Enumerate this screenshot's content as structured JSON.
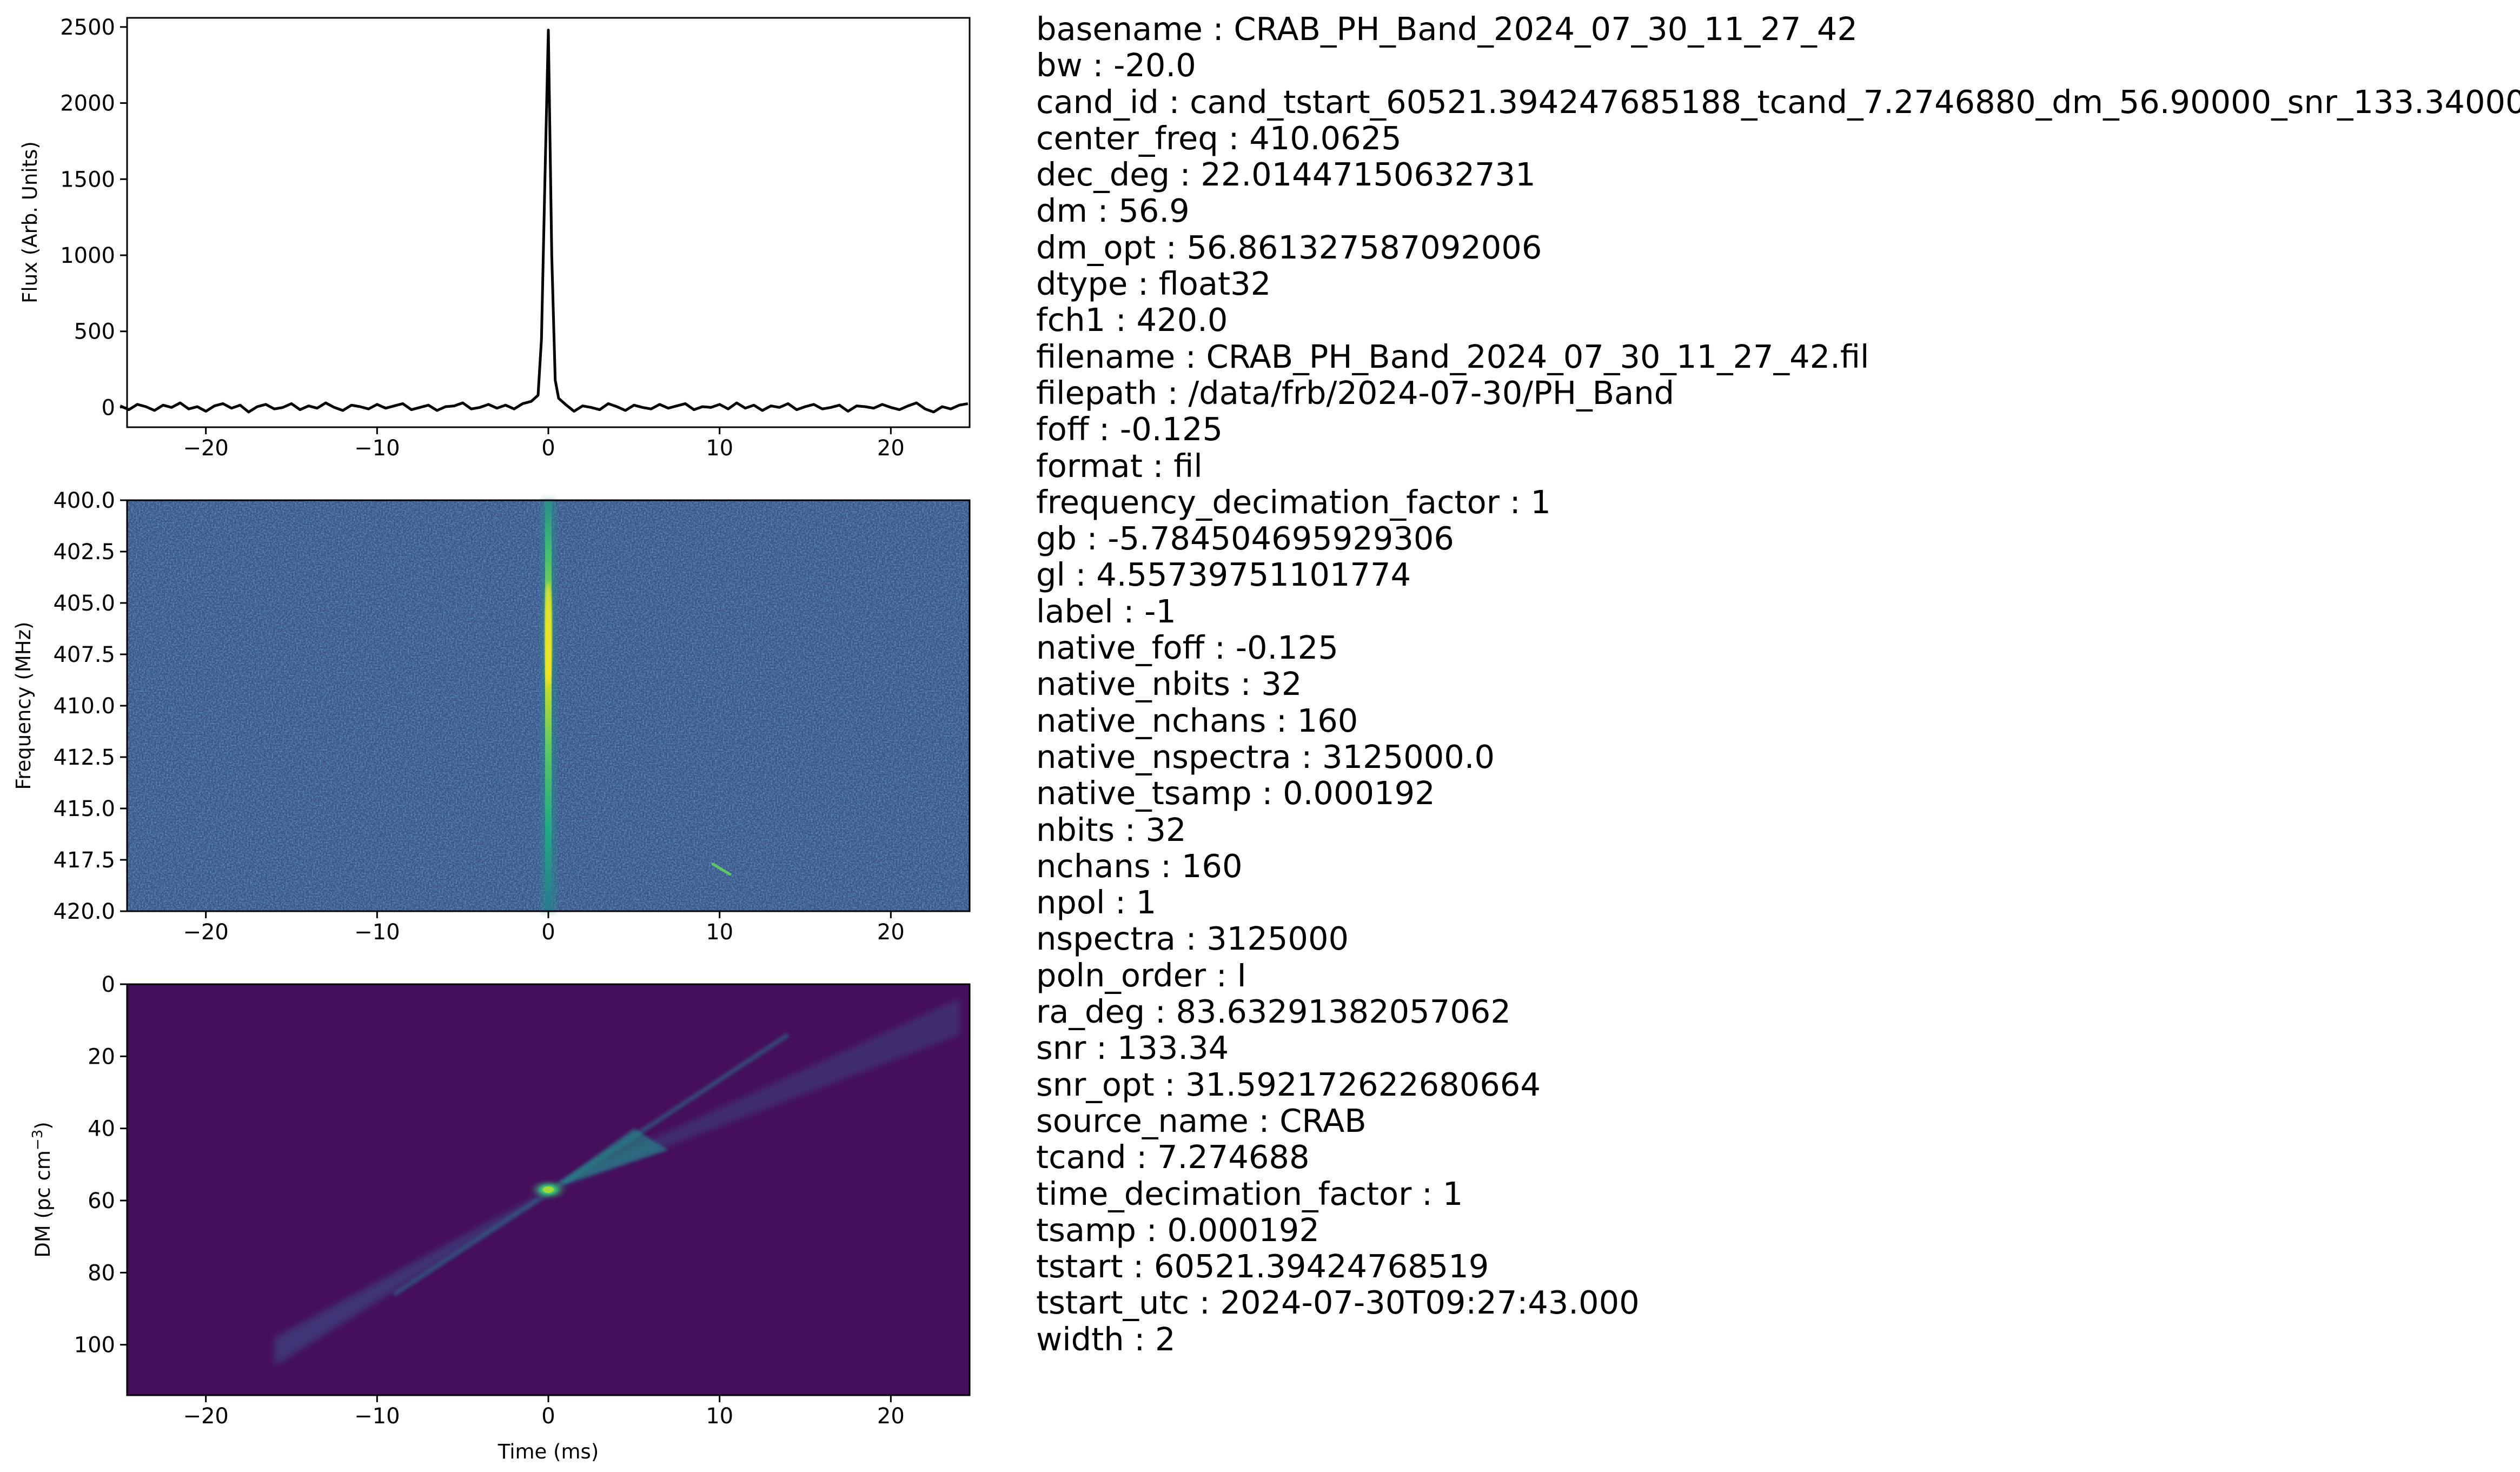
{
  "chart_data": [
    {
      "type": "line",
      "panel": "pulse-profile",
      "title": "",
      "xlabel": "",
      "ylabel": "Flux (Arb. Units)",
      "xlim": [
        -24.6,
        24.6
      ],
      "ylim": [
        -130,
        2560
      ],
      "xticks": [
        -20,
        -10,
        0,
        10,
        20
      ],
      "xtick_labels": [
        "−20",
        "−10",
        "0",
        "10",
        "20"
      ],
      "yticks": [
        0,
        500,
        1000,
        1500,
        2000,
        2500
      ],
      "ytick_labels": [
        "0",
        "500",
        "1000",
        "1500",
        "2000",
        "2500"
      ],
      "grid": false,
      "color": "#000000",
      "series": [
        {
          "x": [
            -25.0,
            -24.5,
            -24.0,
            -23.5,
            -23.0,
            -22.5,
            -22.0,
            -21.5,
            -21.0,
            -20.5,
            -20.0,
            -19.5,
            -19.0,
            -18.5,
            -18.0,
            -17.5,
            -17.0,
            -16.5,
            -16.0,
            -15.5,
            -15.0,
            -14.5,
            -14.0,
            -13.5,
            -13.0,
            -12.5,
            -12.0,
            -11.5,
            -11.0,
            -10.5,
            -10.0,
            -9.5,
            -9.0,
            -8.5,
            -8.0,
            -7.5,
            -7.0,
            -6.5,
            -6.0,
            -5.5,
            -5.0,
            -4.5,
            -4.0,
            -3.5,
            -3.0,
            -2.5,
            -2.0,
            -1.5,
            -1.0,
            -0.6,
            -0.4,
            -0.2,
            0.0,
            0.2,
            0.4,
            0.6,
            1.0,
            1.5,
            2.0,
            2.5,
            3.0,
            3.5,
            4.0,
            4.5,
            5.0,
            5.5,
            6.0,
            6.5,
            7.0,
            7.5,
            8.0,
            8.5,
            9.0,
            9.5,
            10.0,
            10.5,
            11.0,
            11.5,
            12.0,
            12.5,
            13.0,
            13.5,
            14.0,
            14.5,
            15.0,
            15.5,
            16.0,
            16.5,
            17.0,
            17.5,
            18.0,
            18.5,
            19.0,
            19.5,
            20.0,
            20.5,
            21.0,
            21.5,
            22.0,
            22.5,
            23.0,
            23.5,
            24.0,
            24.5
          ],
          "y": [
            10,
            -15,
            20,
            5,
            -20,
            15,
            0,
            30,
            -10,
            5,
            -25,
            10,
            25,
            -5,
            15,
            -30,
            5,
            20,
            -10,
            0,
            25,
            -15,
            10,
            -5,
            30,
            0,
            -20,
            15,
            5,
            -10,
            20,
            -5,
            10,
            25,
            -15,
            0,
            15,
            -20,
            5,
            10,
            30,
            -10,
            0,
            20,
            -5,
            15,
            -10,
            25,
            40,
            80,
            450,
            1500,
            2480,
            1000,
            180,
            60,
            20,
            -25,
            10,
            0,
            -15,
            25,
            5,
            -20,
            15,
            0,
            -10,
            20,
            -5,
            10,
            25,
            -15,
            5,
            0,
            20,
            -10,
            30,
            -5,
            15,
            -20,
            10,
            0,
            25,
            -15,
            5,
            20,
            -10,
            0,
            15,
            -25,
            10,
            5,
            -5,
            20,
            0,
            -15,
            10,
            30,
            -10,
            -30,
            5,
            -10,
            15,
            25
          ]
        }
      ]
    },
    {
      "type": "heatmap",
      "panel": "dynamic-spectrum",
      "title": "",
      "xlabel": "",
      "ylabel": "Frequency (MHz)",
      "xlim": [
        -24.6,
        24.6
      ],
      "ylim": [
        420.0,
        400.0
      ],
      "xticks": [
        -20,
        -10,
        0,
        10,
        20
      ],
      "xtick_labels": [
        "−20",
        "−10",
        "0",
        "10",
        "20"
      ],
      "yticks": [
        400.0,
        402.5,
        405.0,
        407.5,
        410.0,
        412.5,
        415.0,
        417.5,
        420.0
      ],
      "ytick_labels": [
        "400.0",
        "402.5",
        "405.0",
        "407.5",
        "410.0",
        "412.5",
        "415.0",
        "417.5",
        "420.0"
      ],
      "colormap": "viridis",
      "background_color": "#3b528b",
      "features": [
        {
          "kind": "pulse",
          "time_ms": 0,
          "freq_range_mhz": [
            400.0,
            420.0
          ],
          "peak_freq_mhz": 406.5
        },
        {
          "kind": "streak",
          "time_ms": [
            9.6,
            10.6
          ],
          "freq_mhz": [
            417.7,
            418.2
          ]
        }
      ]
    },
    {
      "type": "heatmap",
      "panel": "dm-time",
      "title": "",
      "xlabel": "Time (ms)",
      "ylabel": "DM (pc cm$^{-3}$)",
      "ylabel_parts": {
        "base": "DM (pc cm",
        "sup": "−3",
        "end": ")"
      },
      "xlim": [
        -24.6,
        24.6
      ],
      "ylim": [
        114,
        0
      ],
      "xticks": [
        -20,
        -10,
        0,
        10,
        20
      ],
      "xtick_labels": [
        "−20",
        "−10",
        "0",
        "10",
        "20"
      ],
      "yticks": [
        0,
        20,
        40,
        60,
        80,
        100
      ],
      "ytick_labels": [
        "0",
        "20",
        "40",
        "60",
        "80",
        "100"
      ],
      "colormap": "viridis",
      "background_color": "#450f5b",
      "features": [
        {
          "kind": "bow-tie",
          "center_time_ms": 0,
          "center_dm": 57,
          "extent_time_ms": [
            -16,
            24
          ]
        }
      ]
    }
  ],
  "metadata_lines": [
    "basename : CRAB_PH_Band_2024_07_30_11_27_42",
    "bw : -20.0",
    "cand_id : cand_tstart_60521.394247685188_tcand_7.2746880_dm_56.90000_snr_133.34000",
    "center_freq : 410.0625",
    "dec_deg : 22.01447150632731",
    "dm : 56.9",
    "dm_opt : 56.861327587092006",
    "dtype : float32",
    "fch1 : 420.0",
    "filename : CRAB_PH_Band_2024_07_30_11_27_42.fil",
    "filepath : /data/frb/2024-07-30/PH_Band",
    "foff : -0.125",
    "format : fil",
    "frequency_decimation_factor : 1",
    "gb : -5.784504695929306",
    "gl : 4.55739751101774",
    "label : -1",
    "native_foff : -0.125",
    "native_nbits : 32",
    "native_nchans : 160",
    "native_nspectra : 3125000.0",
    "native_tsamp : 0.000192",
    "nbits : 32",
    "nchans : 160",
    "npol : 1",
    "nspectra : 3125000",
    "poln_order : I",
    "ra_deg : 83.63291382057062",
    "snr : 133.34",
    "snr_opt : 31.592172622680664",
    "source_name : CRAB",
    "tcand : 7.274688",
    "time_decimation_factor : 1",
    "tsamp : 0.000192",
    "tstart : 60521.39424768519",
    "tstart_utc : 2024-07-30T09:27:43.000",
    "width : 2"
  ]
}
